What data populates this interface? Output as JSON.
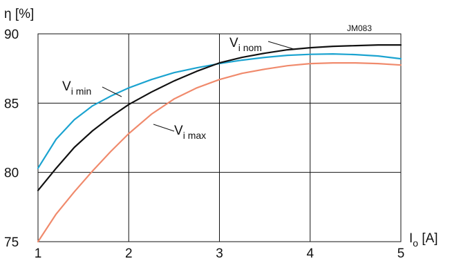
{
  "chart_data": {
    "type": "line",
    "code": "JM083",
    "xlabel": {
      "main": "I",
      "sub": "o",
      "unit": " [A]"
    },
    "ylabel": "η [%]",
    "xlim": [
      1,
      5
    ],
    "ylim": [
      75,
      90
    ],
    "x_ticks": [
      1,
      2,
      3,
      4,
      5
    ],
    "y_ticks": [
      75,
      80,
      85,
      90
    ],
    "grid": true,
    "series": [
      {
        "name": "V i min",
        "label_main": "V",
        "label_sub": "i min",
        "color": "#1ba3d0",
        "x": [
          1.0,
          1.2,
          1.4,
          1.6,
          1.8,
          2.0,
          2.25,
          2.5,
          2.75,
          3.0,
          3.25,
          3.5,
          3.75,
          4.0,
          4.25,
          4.5,
          4.75,
          5.0
        ],
        "y": [
          80.3,
          82.4,
          83.8,
          84.8,
          85.5,
          86.1,
          86.7,
          87.2,
          87.55,
          87.85,
          88.1,
          88.3,
          88.45,
          88.52,
          88.55,
          88.5,
          88.4,
          88.2
        ]
      },
      {
        "name": "V i nom",
        "label_main": "V",
        "label_sub": "i nom",
        "color": "#111111",
        "x": [
          1.0,
          1.2,
          1.4,
          1.6,
          1.8,
          2.0,
          2.25,
          2.5,
          2.75,
          3.0,
          3.25,
          3.5,
          3.75,
          4.0,
          4.25,
          4.5,
          4.75,
          5.0
        ],
        "y": [
          78.7,
          80.3,
          81.8,
          83.0,
          84.0,
          84.9,
          85.8,
          86.6,
          87.3,
          87.9,
          88.3,
          88.6,
          88.85,
          89.0,
          89.1,
          89.15,
          89.2,
          89.2
        ]
      },
      {
        "name": "V i max",
        "label_main": "V",
        "label_sub": "i max",
        "color": "#f08a6c",
        "x": [
          1.0,
          1.2,
          1.4,
          1.6,
          1.8,
          2.0,
          2.25,
          2.5,
          2.75,
          3.0,
          3.25,
          3.5,
          3.75,
          4.0,
          4.25,
          4.5,
          4.75,
          5.0
        ],
        "y": [
          75.0,
          77.0,
          78.6,
          80.1,
          81.5,
          82.8,
          84.2,
          85.3,
          86.1,
          86.7,
          87.15,
          87.45,
          87.7,
          87.85,
          87.9,
          87.9,
          87.85,
          87.75
        ]
      }
    ]
  }
}
